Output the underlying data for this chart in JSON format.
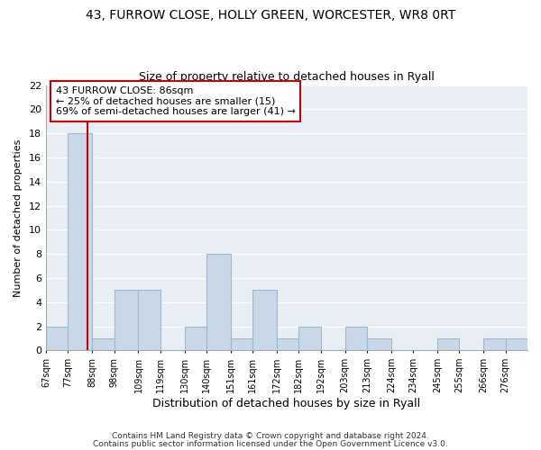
{
  "title": "43, FURROW CLOSE, HOLLY GREEN, WORCESTER, WR8 0RT",
  "subtitle": "Size of property relative to detached houses in Ryall",
  "xlabel": "Distribution of detached houses by size in Ryall",
  "ylabel": "Number of detached properties",
  "bar_color": "#c8d8e8",
  "bar_edge_color": "#a0b8cc",
  "marker_line_color": "#cc0000",
  "marker_value": 86,
  "annotation_lines": [
    "43 FURROW CLOSE: 86sqm",
    "← 25% of detached houses are smaller (15)",
    "69% of semi-detached houses are larger (41) →"
  ],
  "bins": [
    67,
    77,
    88,
    98,
    109,
    119,
    130,
    140,
    151,
    161,
    172,
    182,
    192,
    203,
    213,
    224,
    234,
    245,
    255,
    266,
    276
  ],
  "counts": [
    2,
    18,
    1,
    5,
    5,
    0,
    2,
    8,
    1,
    5,
    1,
    2,
    0,
    2,
    1,
    0,
    0,
    1,
    0,
    1,
    1
  ],
  "tick_labels": [
    "67sqm",
    "77sqm",
    "88sqm",
    "98sqm",
    "109sqm",
    "119sqm",
    "130sqm",
    "140sqm",
    "151sqm",
    "161sqm",
    "172sqm",
    "182sqm",
    "192sqm",
    "203sqm",
    "213sqm",
    "224sqm",
    "234sqm",
    "245sqm",
    "255sqm",
    "266sqm",
    "276sqm"
  ],
  "ylim": [
    0,
    22
  ],
  "yticks": [
    0,
    2,
    4,
    6,
    8,
    10,
    12,
    14,
    16,
    18,
    20,
    22
  ],
  "background_color": "#ffffff",
  "plot_bg_color": "#e8eef4",
  "grid_color": "#ffffff",
  "footer_lines": [
    "Contains HM Land Registry data © Crown copyright and database right 2024.",
    "Contains public sector information licensed under the Open Government Licence v3.0."
  ]
}
